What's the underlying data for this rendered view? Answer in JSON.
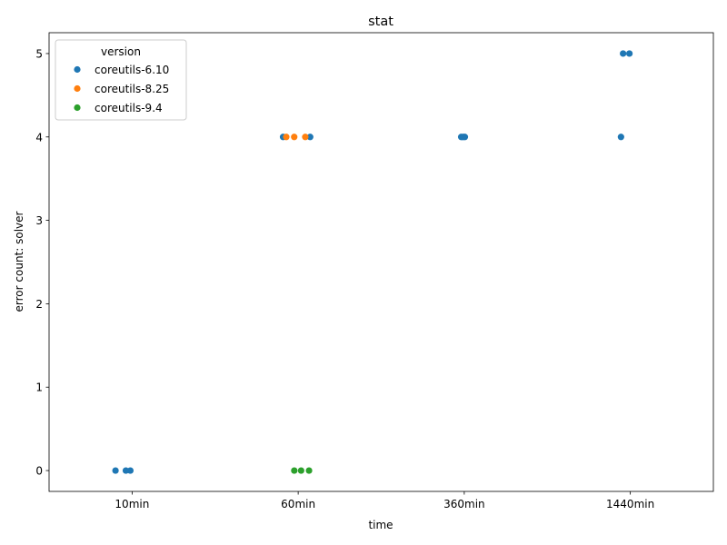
{
  "chart_data": {
    "type": "scatter",
    "title": "stat",
    "xlabel": "time",
    "ylabel": "error count: solver",
    "categories": [
      "10min",
      "60min",
      "360min",
      "1440min"
    ],
    "yticks": [
      0,
      1,
      2,
      3,
      4,
      5
    ],
    "ylim": [
      -0.25,
      5.25
    ],
    "grid": false,
    "legend": {
      "title": "version",
      "placement": "top-left"
    },
    "series": [
      {
        "name": "coreutils-6.10",
        "color": "#1f77b4",
        "points": [
          {
            "category": "10min",
            "value": 0
          },
          {
            "category": "10min",
            "value": 0
          },
          {
            "category": "10min",
            "value": 0
          },
          {
            "category": "60min",
            "value": 4
          },
          {
            "category": "60min",
            "value": 4
          },
          {
            "category": "360min",
            "value": 4
          },
          {
            "category": "360min",
            "value": 4
          },
          {
            "category": "360min",
            "value": 4
          },
          {
            "category": "1440min",
            "value": 5
          },
          {
            "category": "1440min",
            "value": 5
          },
          {
            "category": "1440min",
            "value": 4
          }
        ]
      },
      {
        "name": "coreutils-8.25",
        "color": "#ff7f0e",
        "points": [
          {
            "category": "60min",
            "value": 4
          },
          {
            "category": "60min",
            "value": 4
          },
          {
            "category": "60min",
            "value": 4
          }
        ]
      },
      {
        "name": "coreutils-9.4",
        "color": "#2ca02c",
        "points": [
          {
            "category": "60min",
            "value": 0
          },
          {
            "category": "60min",
            "value": 0
          },
          {
            "category": "60min",
            "value": 0
          }
        ]
      }
    ]
  }
}
